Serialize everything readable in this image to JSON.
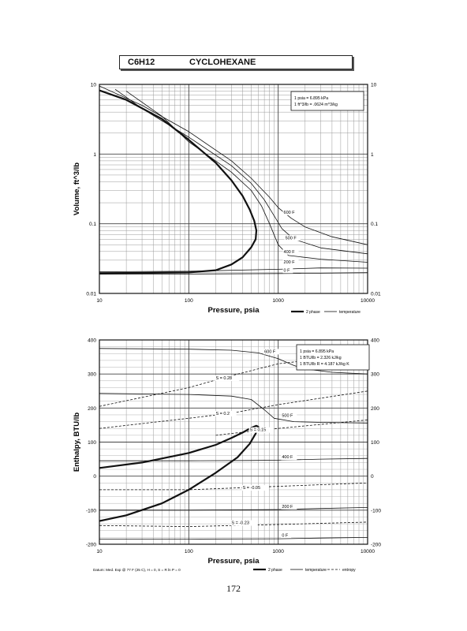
{
  "header": {
    "formula": "C6H12",
    "compound": "CYCLOHEXANE"
  },
  "page_number": "172",
  "chart_data": [
    {
      "type": "line",
      "title": "",
      "xlabel": "Pressure,  psia",
      "ylabel": "Volume, ft^3/lb",
      "x_scale": "log",
      "y_scale": "log",
      "xlim": [
        10,
        10000
      ],
      "ylim": [
        0.01,
        10
      ],
      "x_ticks": [
        "10",
        "100",
        "1000",
        "10000"
      ],
      "y_ticks": [
        "10",
        "1",
        "0.1",
        "0.01"
      ],
      "grid": true,
      "conversion_note": [
        "1 psia = 6.895 kPa",
        "1 ft^3/lb = .0624 m^3/kg"
      ],
      "legend": [
        "2 phase",
        "temperature"
      ],
      "legend_position": "bottom-right",
      "series": [
        {
          "name": "2 phase",
          "style": "bold",
          "points": [
            [
              10,
              0.0195
            ],
            [
              30,
              0.0197
            ],
            [
              100,
              0.02
            ],
            [
              200,
              0.0215
            ],
            [
              300,
              0.026
            ],
            [
              400,
              0.033
            ],
            [
              500,
              0.046
            ],
            [
              560,
              0.06
            ],
            [
              570,
              0.08
            ],
            [
              540,
              0.11
            ],
            [
              480,
              0.16
            ],
            [
              400,
              0.25
            ],
            [
              300,
              0.42
            ],
            [
              200,
              0.75
            ],
            [
              100,
              1.6
            ],
            [
              50,
              3.2
            ],
            [
              20,
              6.0
            ],
            [
              10,
              8.2
            ]
          ]
        },
        {
          "name": "",
          "label": "600 F",
          "style": "thin",
          "points": [
            [
              10,
              9.5
            ],
            [
              30,
              5.0
            ],
            [
              100,
              2.1
            ],
            [
              300,
              0.8
            ],
            [
              500,
              0.45
            ],
            [
              800,
              0.24
            ],
            [
              1000,
              0.17
            ],
            [
              1400,
              0.12
            ],
            [
              2000,
              0.09
            ],
            [
              4000,
              0.065
            ],
            [
              10000,
              0.05
            ]
          ]
        },
        {
          "name": "",
          "label": "500 F",
          "style": "thin",
          "points": [
            [
              15,
              8.5
            ],
            [
              30,
              4.5
            ],
            [
              100,
              1.75
            ],
            [
              300,
              0.68
            ],
            [
              500,
              0.38
            ],
            [
              700,
              0.22
            ],
            [
              900,
              0.13
            ],
            [
              1100,
              0.085
            ],
            [
              1500,
              0.06
            ],
            [
              3000,
              0.045
            ],
            [
              10000,
              0.037
            ]
          ]
        },
        {
          "name": "",
          "label": "400 F",
          "style": "thin",
          "points": [
            [
              20,
              8.0
            ],
            [
              50,
              3.5
            ],
            [
              100,
              1.5
            ],
            [
              300,
              0.55
            ],
            [
              500,
              0.3
            ],
            [
              650,
              0.18
            ],
            [
              800,
              0.1
            ],
            [
              1000,
              0.05
            ],
            [
              1300,
              0.035
            ],
            [
              3000,
              0.031
            ],
            [
              10000,
              0.028
            ]
          ]
        },
        {
          "name": "",
          "label": "200 F",
          "style": "thin",
          "points": [
            [
              10,
              0.0205
            ],
            [
              100,
              0.0208
            ],
            [
              1000,
              0.0222
            ],
            [
              3000,
              0.0232
            ],
            [
              10000,
              0.023
            ]
          ]
        },
        {
          "name": "",
          "label": "0 F",
          "style": "thin",
          "points": [
            [
              10,
              0.0189
            ],
            [
              100,
              0.019
            ],
            [
              1000,
              0.0193
            ],
            [
              3000,
              0.0195
            ],
            [
              10000,
              0.0198
            ]
          ]
        }
      ]
    },
    {
      "type": "line",
      "title": "",
      "xlabel": "Pressure,  psia",
      "ylabel": "Enthalpy, BTU/lb",
      "x_scale": "log",
      "y_scale": "linear",
      "xlim": [
        10,
        10000
      ],
      "ylim": [
        -200,
        400
      ],
      "x_ticks": [
        "10",
        "100",
        "1000",
        "10000"
      ],
      "y_ticks": [
        "400",
        "300",
        "200",
        "100",
        "0",
        "-100",
        "-200"
      ],
      "grid": true,
      "conversion_note": [
        "1 psia = 6.895 kPa",
        "1 BTU/lb = 2.326 kJ/kg",
        "1 BTU/lb R = 4.187 kJ/kg K"
      ],
      "footnote": "Datum: Med. Exp @ 77 F (25 C), H = 0, S = R ln P = 0",
      "legend": [
        "2 phase",
        "temperature",
        "entropy"
      ],
      "legend_position": "bottom-right",
      "series": [
        {
          "name": "2 phase",
          "style": "bold",
          "points": [
            [
              10,
              24
            ],
            [
              30,
              40
            ],
            [
              100,
              68
            ],
            [
              200,
              92
            ],
            [
              300,
              112
            ],
            [
              400,
              128
            ],
            [
              500,
              142
            ],
            [
              570,
              148
            ],
            [
              600,
              145
            ],
            [
              560,
              125
            ],
            [
              480,
              95
            ],
            [
              350,
              55
            ],
            [
              200,
              10
            ],
            [
              100,
              -40
            ],
            [
              50,
              -80
            ],
            [
              20,
              -115
            ],
            [
              10,
              -132
            ]
          ]
        },
        {
          "name": "",
          "label": "600 F",
          "style": "thin",
          "points": [
            [
              10,
              375
            ],
            [
              100,
              373
            ],
            [
              300,
              370
            ],
            [
              600,
              362
            ],
            [
              1000,
              345
            ],
            [
              1500,
              325
            ],
            [
              2000,
              315
            ],
            [
              4000,
              305
            ],
            [
              10000,
              300
            ]
          ]
        },
        {
          "name": "",
          "label": "500 F",
          "style": "thin",
          "points": [
            [
              10,
              243
            ],
            [
              100,
              240
            ],
            [
              300,
              235
            ],
            [
              500,
              225
            ],
            [
              700,
              195
            ],
            [
              900,
              170
            ],
            [
              1500,
              160
            ],
            [
              3000,
              158
            ],
            [
              10000,
              156
            ]
          ]
        },
        {
          "name": "",
          "label": "400 F",
          "style": "thin",
          "points": [
            [
              10,
              45
            ],
            [
              100,
              45
            ],
            [
              500,
              46
            ],
            [
              1000,
              47
            ],
            [
              3000,
              50
            ],
            [
              10000,
              52
            ]
          ]
        },
        {
          "name": "",
          "label": "200 F",
          "style": "thin",
          "points": [
            [
              10,
              -100
            ],
            [
              100,
              -100
            ],
            [
              1000,
              -98
            ],
            [
              3000,
              -95
            ],
            [
              10000,
              -92
            ]
          ]
        },
        {
          "name": "",
          "label": "0 F",
          "style": "thin",
          "points": [
            [
              10,
              -185
            ],
            [
              100,
              -185
            ],
            [
              1000,
              -184
            ],
            [
              3000,
              -182
            ],
            [
              10000,
              -180
            ]
          ]
        },
        {
          "name": "",
          "label": "S = 0.28",
          "style": "dashed",
          "points": [
            [
              10,
              205
            ],
            [
              100,
              260
            ],
            [
              300,
              295
            ],
            [
              1000,
              330
            ],
            [
              10000,
              360
            ]
          ]
        },
        {
          "name": "",
          "label": "S = 0.2",
          "style": "dashed",
          "points": [
            [
              10,
              140
            ],
            [
              100,
              170
            ],
            [
              300,
              185
            ],
            [
              1000,
              210
            ],
            [
              10000,
              250
            ]
          ]
        },
        {
          "name": "",
          "label": "S = 0.15",
          "style": "dashed",
          "points": [
            [
              200,
              120
            ],
            [
              500,
              132
            ],
            [
              1000,
              140
            ],
            [
              10000,
              165
            ]
          ]
        },
        {
          "name": "",
          "label": "S = -0.05",
          "style": "dashed",
          "points": [
            [
              10,
              -40
            ],
            [
              100,
              -40
            ],
            [
              1000,
              -30
            ],
            [
              10000,
              -20
            ]
          ]
        },
        {
          "name": "",
          "label": "S = -0.23",
          "style": "dashed",
          "points": [
            [
              10,
              -145
            ],
            [
              100,
              -148
            ],
            [
              1000,
              -142
            ],
            [
              10000,
              -135
            ]
          ]
        }
      ]
    }
  ]
}
